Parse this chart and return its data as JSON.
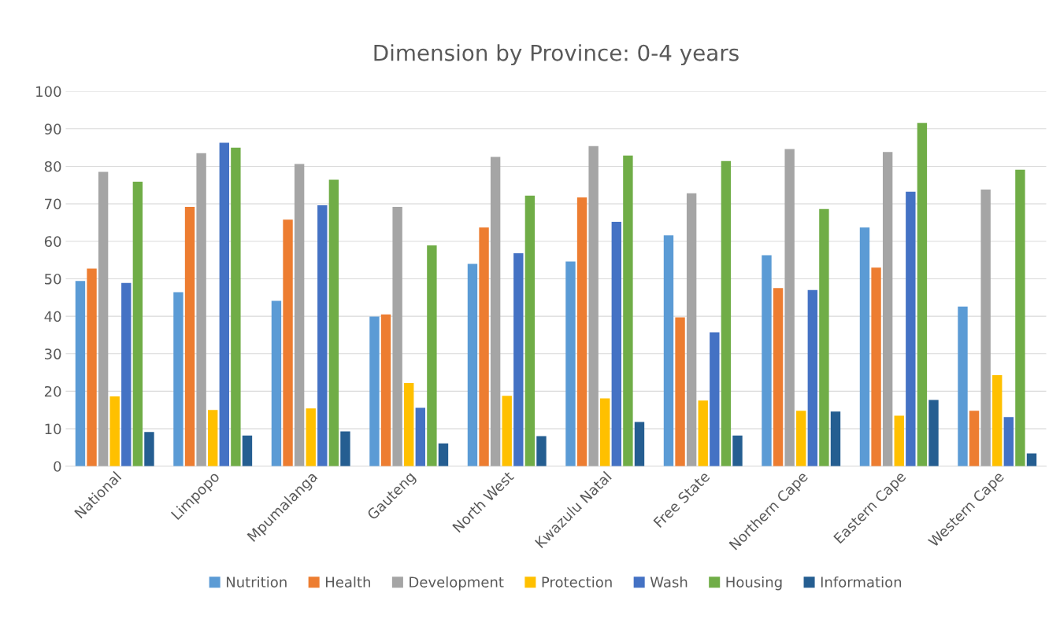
{
  "chart_data": {
    "type": "bar",
    "title": "Dimension by Province: 0-4 years",
    "categories": [
      "National",
      "Limpopo",
      "Mpumalanga",
      "Gauteng",
      "North West",
      "Kwazulu Natal",
      "Free State",
      "Northern Cape",
      "Eastern Cape",
      "Western Cape"
    ],
    "series": [
      {
        "name": "Nutrition",
        "color": "#5b9bd5",
        "values": [
          49.4,
          46.4,
          44.1,
          39.9,
          54.0,
          54.6,
          61.6,
          56.3,
          63.7,
          42.6
        ]
      },
      {
        "name": "Health",
        "color": "#ed7d31",
        "values": [
          52.7,
          69.2,
          65.8,
          40.5,
          63.7,
          71.7,
          39.7,
          47.5,
          53.0,
          14.8
        ]
      },
      {
        "name": "Development",
        "color": "#a5a5a5",
        "values": [
          78.5,
          83.5,
          80.6,
          69.2,
          82.5,
          85.4,
          72.8,
          84.6,
          83.8,
          73.8
        ]
      },
      {
        "name": "Protection",
        "color": "#ffc000",
        "values": [
          18.6,
          15.0,
          15.4,
          22.2,
          18.8,
          18.1,
          17.5,
          14.8,
          13.5,
          24.3
        ]
      },
      {
        "name": "Wash",
        "color": "#4472c4",
        "values": [
          48.9,
          86.3,
          69.6,
          15.6,
          56.8,
          65.2,
          35.7,
          47.0,
          73.2,
          13.1
        ]
      },
      {
        "name": "Housing",
        "color": "#70ad47",
        "values": [
          75.9,
          85.0,
          76.4,
          58.9,
          72.2,
          82.9,
          81.4,
          68.6,
          91.6,
          79.1
        ]
      },
      {
        "name": "Information",
        "color": "#255e91",
        "values": [
          9.1,
          8.2,
          9.3,
          6.1,
          8.0,
          11.8,
          8.2,
          14.6,
          17.7,
          3.4
        ]
      }
    ],
    "ylim": [
      0,
      100
    ],
    "yticks": [
      0,
      10,
      20,
      30,
      40,
      50,
      60,
      70,
      80,
      90,
      100
    ],
    "grid": "y",
    "legend": "bottom"
  }
}
